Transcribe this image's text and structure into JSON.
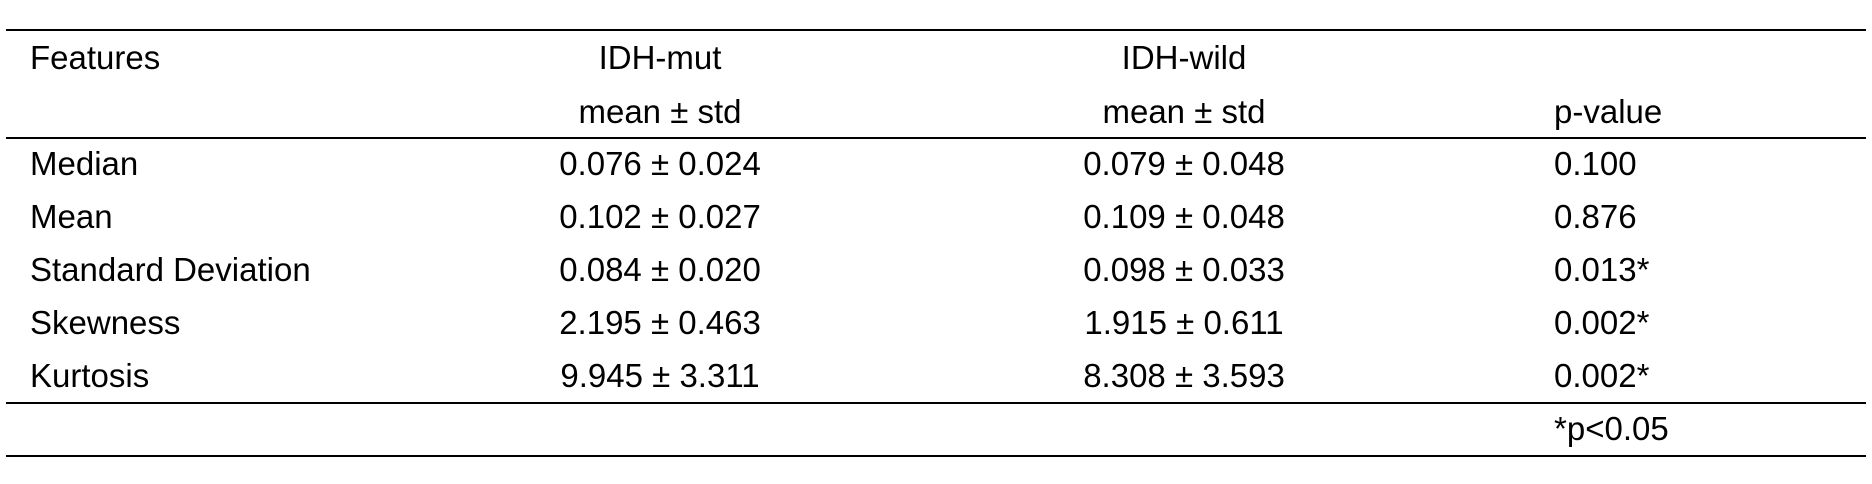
{
  "table": {
    "header": [
      [
        "Features"
      ],
      [
        "IDH-mut",
        "mean ± std"
      ],
      [
        "IDH-wild",
        "mean ± std"
      ],
      [
        "p-value"
      ]
    ],
    "rows": [
      [
        "Median",
        "0.076 ± 0.024",
        "0.079 ± 0.048",
        "0.100"
      ],
      [
        "Mean",
        "0.102 ± 0.027",
        "0.109 ± 0.048",
        "0.876"
      ],
      [
        "Standard Deviation",
        "0.084 ± 0.020",
        "0.098 ± 0.033",
        "0.013*"
      ],
      [
        "Skewness",
        "2.195 ± 0.463",
        "1.915 ± 0.611",
        "0.002*"
      ],
      [
        "Kurtosis",
        "9.945 ± 3.311",
        "8.308 ± 3.593",
        "0.002*"
      ]
    ],
    "footnote": "*p<0.05"
  }
}
